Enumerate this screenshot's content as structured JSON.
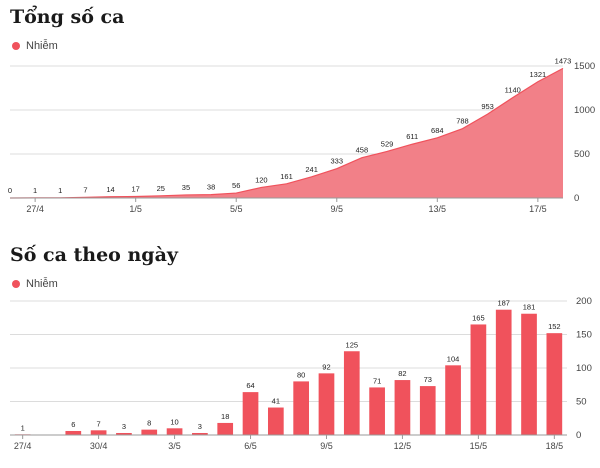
{
  "colors": {
    "accent": "#f0525c",
    "area_fill": "#f28088",
    "grid": "#dcdcdc"
  },
  "chart_data": [
    {
      "type": "area",
      "title": "Tổng số ca",
      "legend": [
        "Nhiễm"
      ],
      "legend_position": "top-left",
      "x": [
        "26/4",
        "27/4",
        "28/4",
        "29/4",
        "30/4",
        "1/5",
        "2/5",
        "3/5",
        "4/5",
        "5/5",
        "6/5",
        "7/5",
        "8/5",
        "9/5",
        "10/5",
        "11/5",
        "12/5",
        "13/5",
        "14/5",
        "15/5",
        "16/5",
        "17/5",
        "18/5"
      ],
      "x_tick_labels": [
        "27/4",
        "1/5",
        "5/5",
        "9/5",
        "13/5",
        "17/5"
      ],
      "series": [
        {
          "name": "Nhiễm",
          "values": [
            0,
            1,
            1,
            7,
            14,
            17,
            25,
            35,
            38,
            56,
            120,
            161,
            241,
            333,
            458,
            529,
            611,
            684,
            788,
            953,
            1140,
            1321,
            1473
          ]
        }
      ],
      "ylim": [
        0,
        1500
      ],
      "yticks": [
        0,
        500,
        1000,
        1500
      ],
      "y_axis_side": "right",
      "grid": true
    },
    {
      "type": "bar",
      "title": "Số ca theo ngày",
      "legend": [
        "Nhiễm"
      ],
      "legend_position": "top-left",
      "categories": [
        "27/4",
        "28/4",
        "29/4",
        "30/4",
        "1/5",
        "2/5",
        "3/5",
        "4/5",
        "5/5",
        "6/5",
        "7/5",
        "8/5",
        "9/5",
        "10/5",
        "11/5",
        "12/5",
        "13/5",
        "14/5",
        "15/5",
        "16/5",
        "17/5",
        "18/5"
      ],
      "x_tick_labels": [
        "27/4",
        "30/4",
        "3/5",
        "6/5",
        "9/5",
        "12/5",
        "15/5",
        "18/5"
      ],
      "series": [
        {
          "name": "Nhiễm",
          "values": [
            1,
            0,
            6,
            7,
            3,
            8,
            10,
            3,
            18,
            64,
            41,
            80,
            92,
            125,
            71,
            82,
            73,
            104,
            165,
            187,
            181,
            152
          ]
        }
      ],
      "ylim": [
        0,
        200
      ],
      "yticks": [
        0,
        50,
        100,
        150,
        200
      ],
      "y_axis_side": "right",
      "grid": true
    }
  ]
}
